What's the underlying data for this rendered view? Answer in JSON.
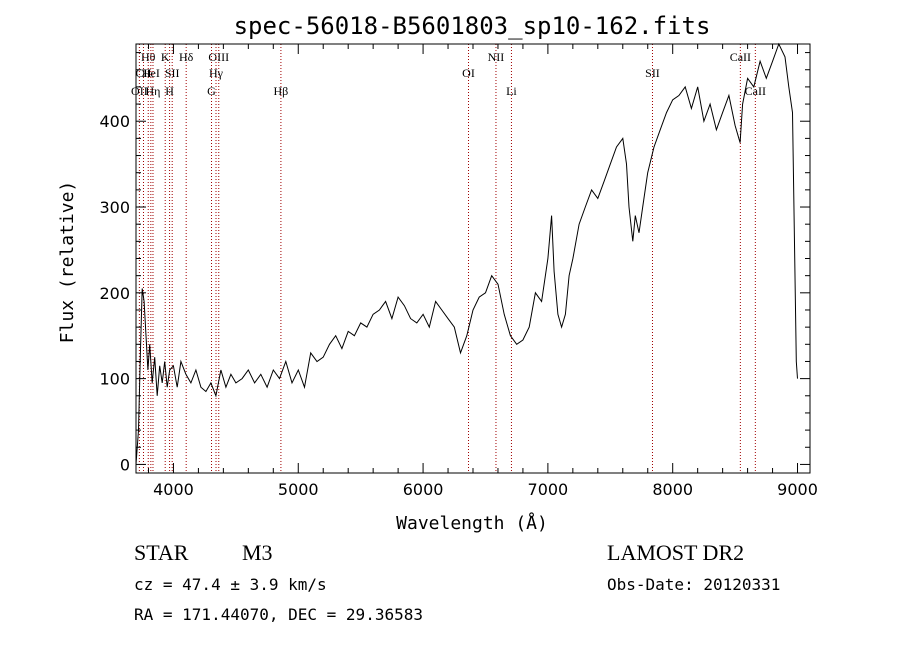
{
  "chart_data": {
    "type": "line",
    "title": "spec-56018-B5601803_sp10-162.fits",
    "xlabel": "Wavelength (Å)",
    "ylabel": "Flux (relative)",
    "xlim": [
      3700,
      9100
    ],
    "ylim": [
      -10,
      490
    ],
    "xticks": [
      4000,
      5000,
      6000,
      7000,
      8000,
      9000
    ],
    "yticks": [
      0,
      100,
      200,
      300,
      400
    ],
    "grid": false,
    "series": [
      {
        "color": "#000000",
        "x": [
          3700,
          3720,
          3735,
          3750,
          3765,
          3780,
          3795,
          3810,
          3830,
          3850,
          3870,
          3890,
          3910,
          3930,
          3950,
          3970,
          4000,
          4030,
          4060,
          4100,
          4140,
          4180,
          4220,
          4260,
          4300,
          4340,
          4380,
          4420,
          4460,
          4500,
          4550,
          4600,
          4650,
          4700,
          4750,
          4800,
          4850,
          4900,
          4950,
          5000,
          5050,
          5100,
          5150,
          5200,
          5250,
          5300,
          5350,
          5400,
          5450,
          5500,
          5550,
          5600,
          5650,
          5700,
          5750,
          5800,
          5850,
          5900,
          5950,
          6000,
          6050,
          6100,
          6150,
          6200,
          6250,
          6300,
          6350,
          6400,
          6450,
          6500,
          6550,
          6600,
          6650,
          6700,
          6750,
          6800,
          6850,
          6900,
          6950,
          7000,
          7030,
          7050,
          7080,
          7110,
          7140,
          7170,
          7200,
          7250,
          7300,
          7350,
          7400,
          7450,
          7500,
          7550,
          7600,
          7630,
          7650,
          7680,
          7700,
          7730,
          7760,
          7800,
          7850,
          7900,
          7950,
          8000,
          8050,
          8100,
          8150,
          8200,
          8250,
          8300,
          8350,
          8400,
          8450,
          8500,
          8540,
          8560,
          8600,
          8650,
          8700,
          8750,
          8800,
          8850,
          8900,
          8930,
          8960,
          8990,
          9000
        ],
        "y": [
          0,
          40,
          130,
          205,
          190,
          150,
          110,
          140,
          95,
          125,
          80,
          115,
          95,
          120,
          90,
          110,
          115,
          90,
          120,
          105,
          95,
          110,
          90,
          85,
          95,
          80,
          110,
          90,
          105,
          95,
          100,
          110,
          95,
          105,
          90,
          110,
          100,
          120,
          95,
          110,
          90,
          130,
          120,
          125,
          140,
          150,
          135,
          155,
          150,
          165,
          160,
          175,
          180,
          190,
          170,
          195,
          185,
          170,
          165,
          175,
          160,
          190,
          180,
          170,
          160,
          130,
          150,
          180,
          195,
          200,
          220,
          210,
          175,
          150,
          140,
          145,
          160,
          200,
          190,
          240,
          290,
          225,
          175,
          160,
          175,
          220,
          240,
          280,
          300,
          320,
          310,
          330,
          350,
          370,
          380,
          350,
          300,
          260,
          290,
          270,
          300,
          340,
          370,
          390,
          410,
          425,
          430,
          440,
          415,
          440,
          400,
          420,
          390,
          410,
          430,
          395,
          375,
          420,
          450,
          440,
          470,
          450,
          470,
          490,
          475,
          440,
          410,
          120,
          100
        ]
      }
    ],
    "line_labels": [
      {
        "label": "Hθ",
        "x": 3798,
        "row": 1
      },
      {
        "label": "CII",
        "x": 3760,
        "row": 2
      },
      {
        "label": "OII",
        "x": 3727,
        "row": 3
      },
      {
        "label": "HeI",
        "x": 3819,
        "row": 2
      },
      {
        "label": "Hη",
        "x": 3836,
        "row": 3
      },
      {
        "label": "K",
        "x": 3934,
        "row": 1
      },
      {
        "label": "SII",
        "x": 3990,
        "row": 2
      },
      {
        "label": "H",
        "x": 3969,
        "row": 3
      },
      {
        "label": "Hδ",
        "x": 4102,
        "row": 1
      },
      {
        "label": "OIII",
        "x": 4363,
        "row": 1
      },
      {
        "label": "Hγ",
        "x": 4341,
        "row": 2
      },
      {
        "label": "G",
        "x": 4305,
        "row": 3
      },
      {
        "label": "Hβ",
        "x": 4861,
        "row": 3
      },
      {
        "label": "OI",
        "x": 6364,
        "row": 2
      },
      {
        "label": "NII",
        "x": 6584,
        "row": 1
      },
      {
        "label": "Li",
        "x": 6708,
        "row": 3
      },
      {
        "label": "SII",
        "x": 7838,
        "row": 2
      },
      {
        "label": "CaII",
        "x": 8542,
        "row": 1
      },
      {
        "label": "CaII",
        "x": 8662,
        "row": 3
      }
    ]
  },
  "info": {
    "object_class": "STAR",
    "subclass": "M3",
    "survey": "LAMOST DR2",
    "redshift": "cz = 47.4 ± 3.9 km/s",
    "obs_date": "Obs-Date: 20120331",
    "coords": "RA = 171.44070, DEC =  29.36583"
  }
}
